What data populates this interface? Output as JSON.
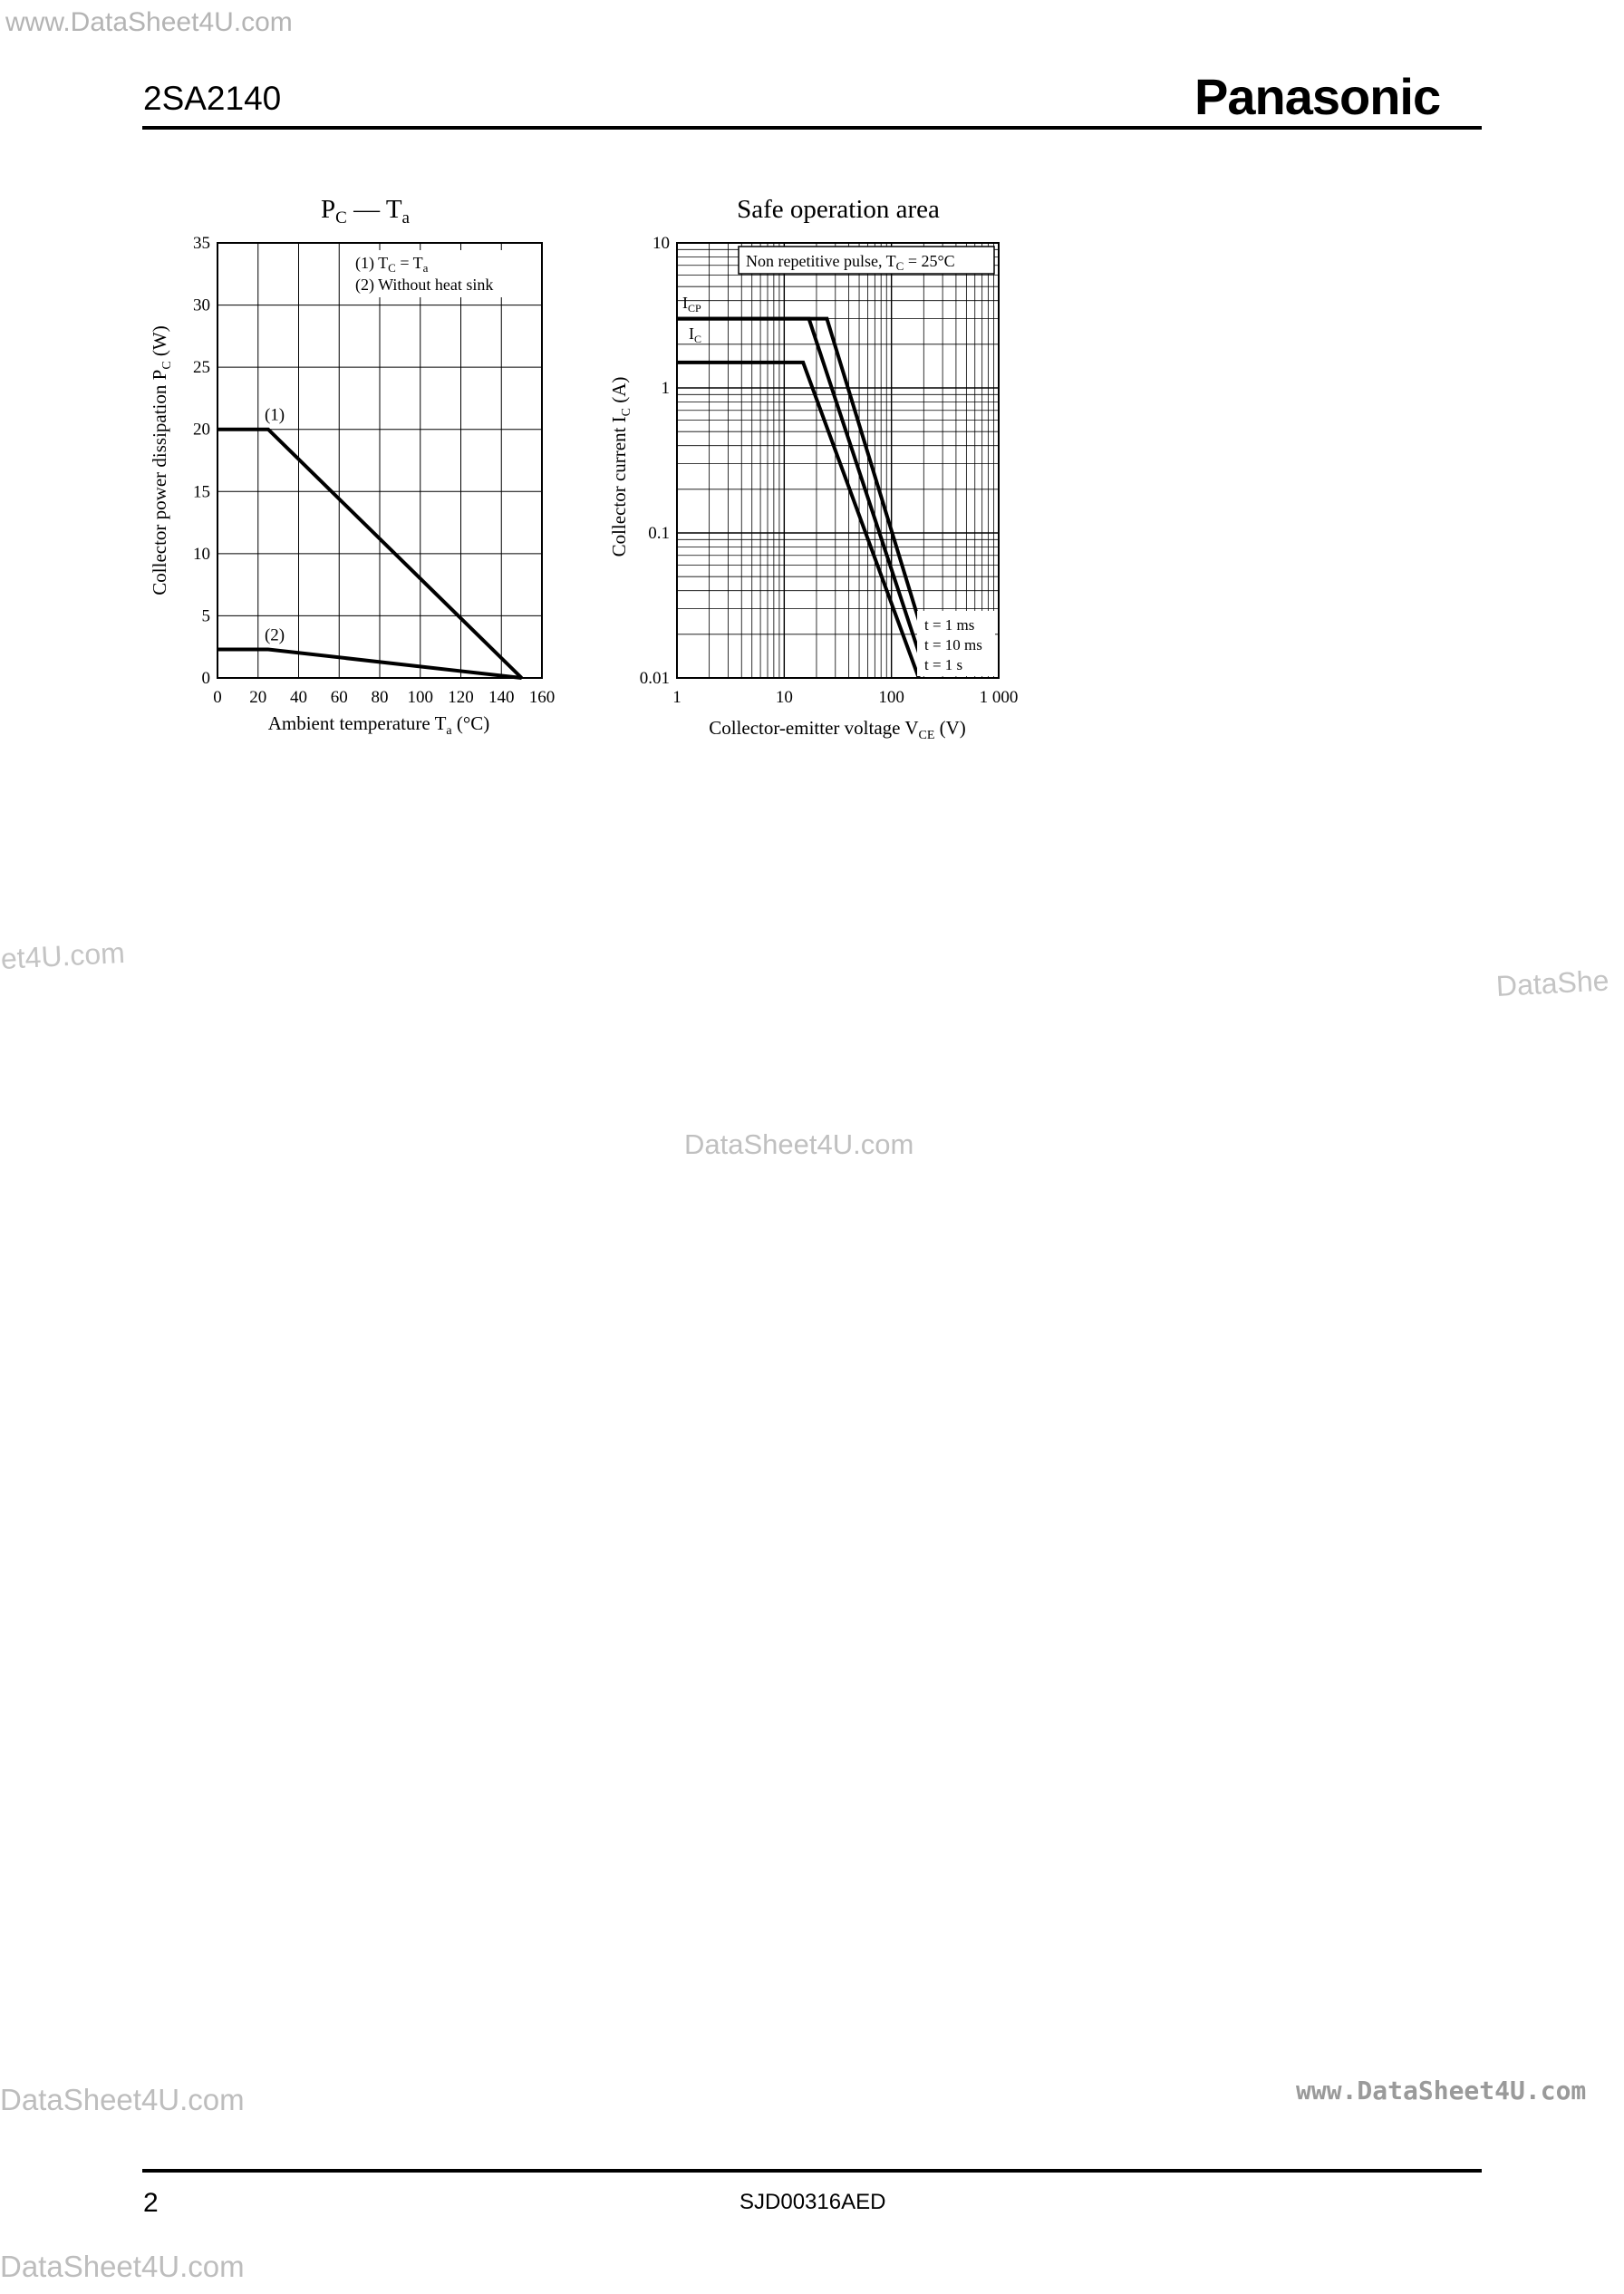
{
  "header": {
    "part_number": "2SA2140",
    "brand": "Panasonic"
  },
  "footer": {
    "page_number": "2",
    "doc_code": "SJD00316AED"
  },
  "watermarks": {
    "top": "www.DataSheet4U.com",
    "left": "et4U.com",
    "right": "DataShe",
    "center": "DataSheet4U.com",
    "bottom_left": "DataSheet4U.com",
    "bottom_right": "www.DataSheet4U.com",
    "bottom": "DataSheet4U.com"
  },
  "chart_data": [
    {
      "type": "line",
      "title": "PC — Ta",
      "xlabel": "Ambient temperature  Ta  (°C)",
      "ylabel": "Collector power dissipation  PC  (W)",
      "xlim": [
        0,
        160
      ],
      "ylim": [
        0,
        35
      ],
      "xticks": [
        0,
        20,
        40,
        60,
        80,
        100,
        120,
        140,
        160
      ],
      "yticks": [
        0,
        5,
        10,
        15,
        20,
        25,
        30,
        35
      ],
      "grid": true,
      "legend_lines": [
        "(1) TC = Ta",
        "(2) Without heat sink"
      ],
      "series": [
        {
          "name": "(1)",
          "x": [
            0,
            25,
            150
          ],
          "y": [
            20,
            20,
            0
          ]
        },
        {
          "name": "(2)",
          "x": [
            0,
            25,
            150
          ],
          "y": [
            2.3,
            2.3,
            0
          ]
        }
      ]
    },
    {
      "type": "line",
      "title": "Safe operation area",
      "xlabel": "Collector-emitter voltage  VCE  (V)",
      "ylabel": "Collector current  IC  (A)",
      "xscale": "log",
      "yscale": "log",
      "xlim": [
        1,
        1000
      ],
      "ylim": [
        0.01,
        10
      ],
      "xticks": [
        "1",
        "10",
        "100",
        "1 000"
      ],
      "yticks": [
        "0.01",
        "0.1",
        "1",
        "10"
      ],
      "grid": true,
      "annotation": "Non repetitive pulse, TC = 25°C",
      "level_labels": [
        "ICP",
        "IC"
      ],
      "series": [
        {
          "name": "t = 1 ms",
          "x": [
            1,
            25,
            180
          ],
          "y": [
            3,
            3,
            0.025
          ]
        },
        {
          "name": "t = 10 ms",
          "x": [
            1,
            17,
            180
          ],
          "y": [
            3,
            3,
            0.015
          ]
        },
        {
          "name": "t = 1 s",
          "x": [
            1,
            15,
            180
          ],
          "y": [
            1.5,
            1.5,
            0.01
          ]
        }
      ]
    }
  ]
}
